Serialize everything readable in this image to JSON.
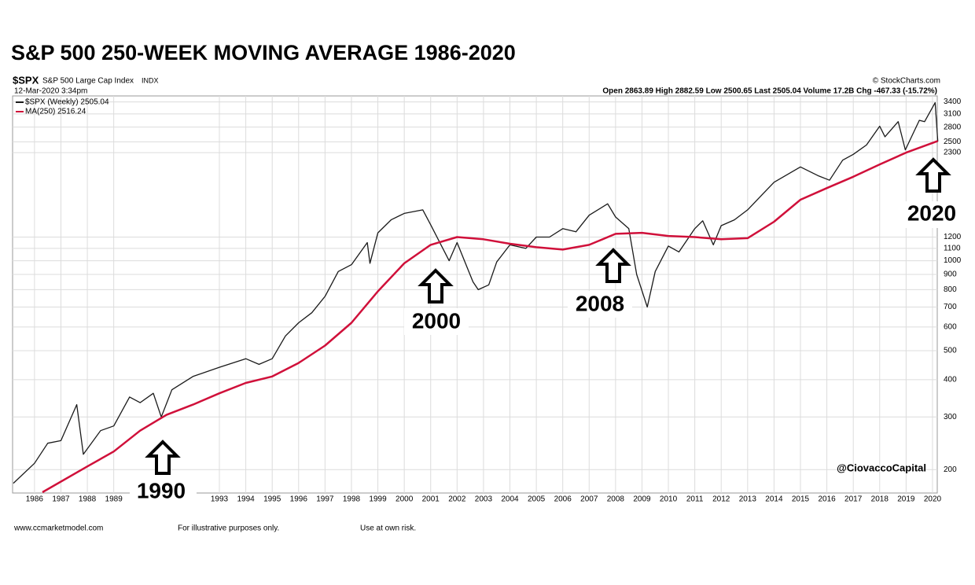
{
  "chart_data": {
    "type": "line",
    "title": "S&P 500 250-WEEK MOVING AVERAGE 1986-2020",
    "symbol": "$SPX",
    "index_name": "S&P 500 Large Cap Index",
    "exchange": "INDX",
    "date": "12-Mar-2020 3:34pm",
    "source": "© StockCharts.com",
    "ohlc": "Open 2863.89  High 2882.59  Low 2500.65  Last 2505.04  Volume 17.2B  Chg -467.33 (-15.72%)",
    "watermark": "@CiovaccoCapital",
    "annotations": [
      "1990",
      "2000",
      "2008",
      "2020"
    ],
    "footer": [
      "www.ccmarketmodel.com",
      "For illustrative purposes only.",
      "Use at own risk."
    ],
    "log_scale": true,
    "grid": true,
    "xlim": [
      1985.17,
      2020.18
    ],
    "xticks": [
      1986,
      1987,
      1988,
      1989,
      1993,
      1994,
      1995,
      1996,
      1997,
      1998,
      1999,
      2000,
      2001,
      2002,
      2003,
      2004,
      2005,
      2006,
      2007,
      2008,
      2009,
      2010,
      2011,
      2012,
      2013,
      2014,
      2015,
      2016,
      2017,
      2018,
      2019,
      2020
    ],
    "ylim": [
      167,
      3560
    ],
    "yticks": [
      200,
      300,
      400,
      500,
      600,
      700,
      800,
      900,
      1000,
      1100,
      1200,
      2300,
      2500,
      2800,
      3100,
      3400
    ],
    "series": [
      {
        "name": "$SPX (Weekly) 2505.04",
        "color": "#1a1a1a",
        "x": [
          1985.2,
          1986,
          1986.5,
          1987,
          1987.6,
          1987.85,
          1988.5,
          1989,
          1989.6,
          1990,
          1990.5,
          1990.8,
          1991.2,
          1992,
          1993,
          1994,
          1994.5,
          1995,
          1995.5,
          1996,
          1996.5,
          1997,
          1997.5,
          1998,
          1998.6,
          1998.7,
          1999,
          1999.5,
          2000,
          2000.7,
          2001,
          2001.7,
          2002,
          2002.6,
          2002.8,
          2003.2,
          2003.5,
          2004,
          2004.6,
          2005,
          2005.5,
          2006,
          2006.5,
          2007,
          2007.7,
          2008,
          2008.5,
          2008.8,
          2009.2,
          2009.5,
          2010,
          2010.4,
          2011,
          2011.3,
          2011.7,
          2012,
          2012.5,
          2013,
          2014,
          2015,
          2015.7,
          2016.1,
          2016.6,
          2017,
          2017.5,
          2018,
          2018.2,
          2018.7,
          2018.97,
          2019.5,
          2019.7,
          2020.1,
          2020.2
        ],
        "values": [
          180,
          210,
          245,
          250,
          330,
          225,
          270,
          280,
          350,
          335,
          360,
          300,
          370,
          410,
          440,
          470,
          450,
          470,
          560,
          620,
          670,
          760,
          920,
          970,
          1150,
          980,
          1240,
          1370,
          1440,
          1480,
          1320,
          1000,
          1150,
          850,
          800,
          830,
          990,
          1130,
          1100,
          1200,
          1200,
          1280,
          1250,
          1420,
          1550,
          1400,
          1280,
          900,
          700,
          920,
          1120,
          1070,
          1280,
          1360,
          1130,
          1310,
          1370,
          1480,
          1830,
          2060,
          1920,
          1860,
          2170,
          2270,
          2440,
          2820,
          2600,
          2920,
          2350,
          2950,
          2920,
          3380,
          2505
        ]
      },
      {
        "name": "MA(250) 2516.24",
        "color": "#d0103a",
        "x": [
          1986.3,
          1988,
          1989,
          1990,
          1991,
          1992,
          1993,
          1994,
          1995,
          1996,
          1997,
          1998,
          1999,
          2000,
          2001,
          2002,
          2003,
          2004,
          2005,
          2006,
          2007,
          2008,
          2009,
          2010,
          2011,
          2012,
          2013,
          2014,
          2015,
          2016,
          2017,
          2018,
          2019,
          2020.2
        ],
        "values": [
          168,
          205,
          230,
          270,
          305,
          330,
          360,
          390,
          410,
          455,
          520,
          620,
          790,
          980,
          1130,
          1200,
          1180,
          1140,
          1110,
          1090,
          1130,
          1230,
          1240,
          1210,
          1200,
          1180,
          1190,
          1350,
          1600,
          1750,
          1910,
          2100,
          2300,
          2516
        ]
      }
    ]
  }
}
